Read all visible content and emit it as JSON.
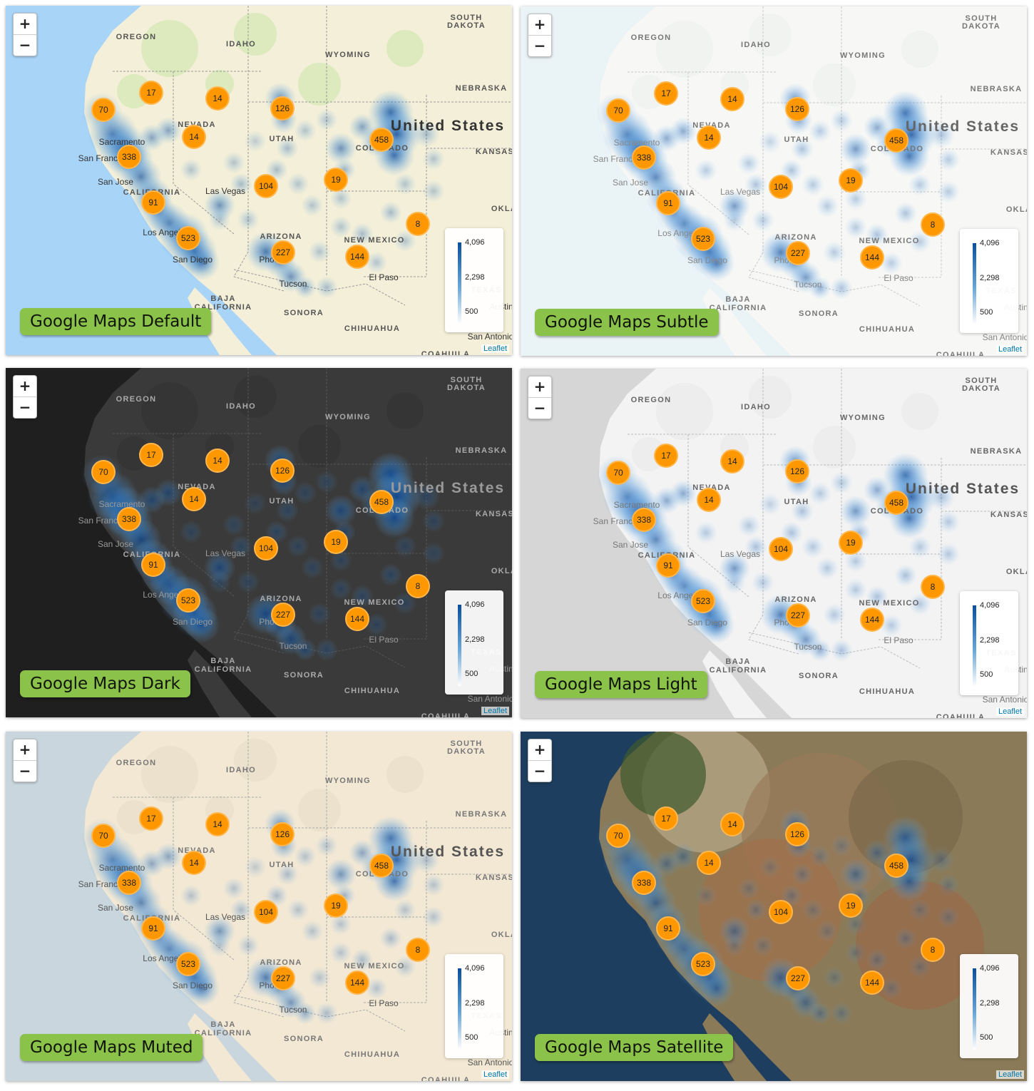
{
  "zoom": {
    "in_label": "+",
    "out_label": "−"
  },
  "legend": {
    "max": "4,096",
    "mid": "2,298",
    "min": "500"
  },
  "attribution": "Leaflet",
  "places": {
    "states": [
      "OREGON",
      "IDAHO",
      "WYOMING",
      "SOUTH",
      "DAKOTA",
      "NEBRASKA",
      "NEVADA",
      "UTAH",
      "COLORADO",
      "KANSAS",
      "CALIFORNIA",
      "ARIZONA",
      "NEW MEXICO",
      "OKLA",
      "TEXAS",
      "BAJA",
      "CALIFORNIA",
      "SONORA",
      "CHIHUAHUA",
      "COAHUILA"
    ],
    "cities": [
      "Sacramento",
      "San Francisco",
      "San Jose",
      "Las Vegas",
      "Los Angeles",
      "San Diego",
      "Phoenix",
      "Tucson",
      "El Paso",
      "San Antonio",
      "Austin"
    ],
    "country": "United States"
  },
  "clusters": [
    "70",
    "17",
    "14",
    "126",
    "14",
    "458",
    "338",
    "104",
    "19",
    "91",
    "523",
    "8",
    "227",
    "144"
  ],
  "panels": [
    {
      "title": "Google Maps Default",
      "style": "default"
    },
    {
      "title": "Google Maps Subtle",
      "style": "subtle"
    },
    {
      "title": "Google Maps Dark",
      "style": "dark"
    },
    {
      "title": "Google Maps Light",
      "style": "light"
    },
    {
      "title": "Google Maps Muted",
      "style": "muted"
    },
    {
      "title": "Google Maps Satellite",
      "style": "satellite"
    }
  ]
}
